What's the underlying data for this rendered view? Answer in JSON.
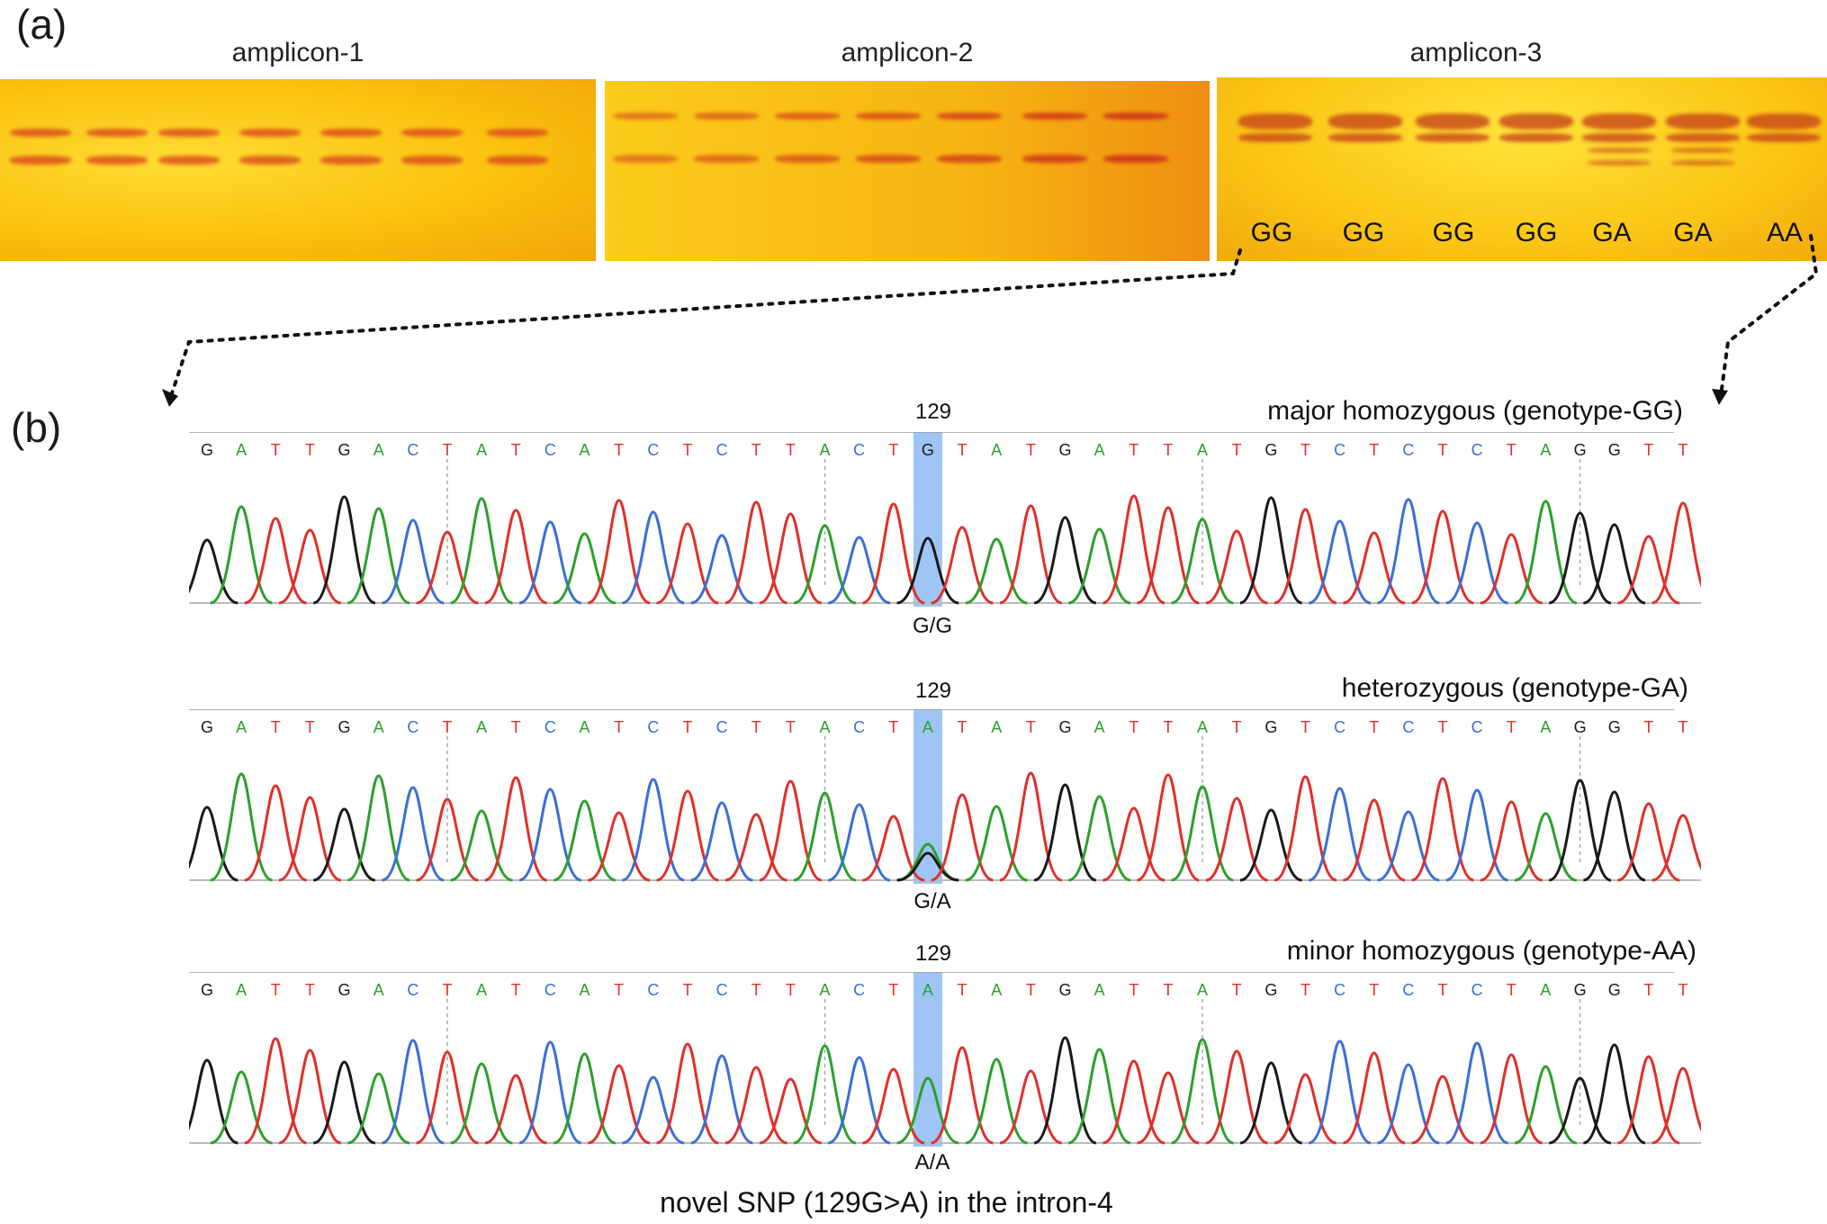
{
  "panel_a_label": "(a)",
  "panel_b_label": "(b)",
  "gels": [
    {
      "title": "amplicon-1",
      "lanes": 7
    },
    {
      "title": "amplicon-2",
      "lanes": 7
    },
    {
      "title": "amplicon-3",
      "lanes": 7,
      "genotypes": [
        "GG",
        "GG",
        "GG",
        "GG",
        "GA",
        "GA",
        "AA"
      ]
    }
  ],
  "traces": [
    {
      "title": "major homozygous (genotype-GG)",
      "position": "129",
      "call": "G/G",
      "sequence": "GATTGACTATCATCTCTTACTGTATGATTATGTCTCTCTAGGTT"
    },
    {
      "title": "heterozygous (genotype-GA)",
      "position": "129",
      "call": "G/A",
      "sequence": "GATTGACTATCATCTCTTACTATATGATTATGTCTCTCTAGGTT"
    },
    {
      "title": "minor homozygous (genotype-AA)",
      "position": "129",
      "call": "A/A",
      "sequence": "GATTGACTATCATCTCTTACTATATGATTATGTCTCTCTAGGTT"
    }
  ],
  "caption": "novel SNP (129G>A) in the intron-4",
  "colors": {
    "A": "#2ca02c",
    "C": "#3b6fd6",
    "G": "#1a1a1a",
    "T": "#e0302a",
    "highlight": "#9ec5f5"
  }
}
